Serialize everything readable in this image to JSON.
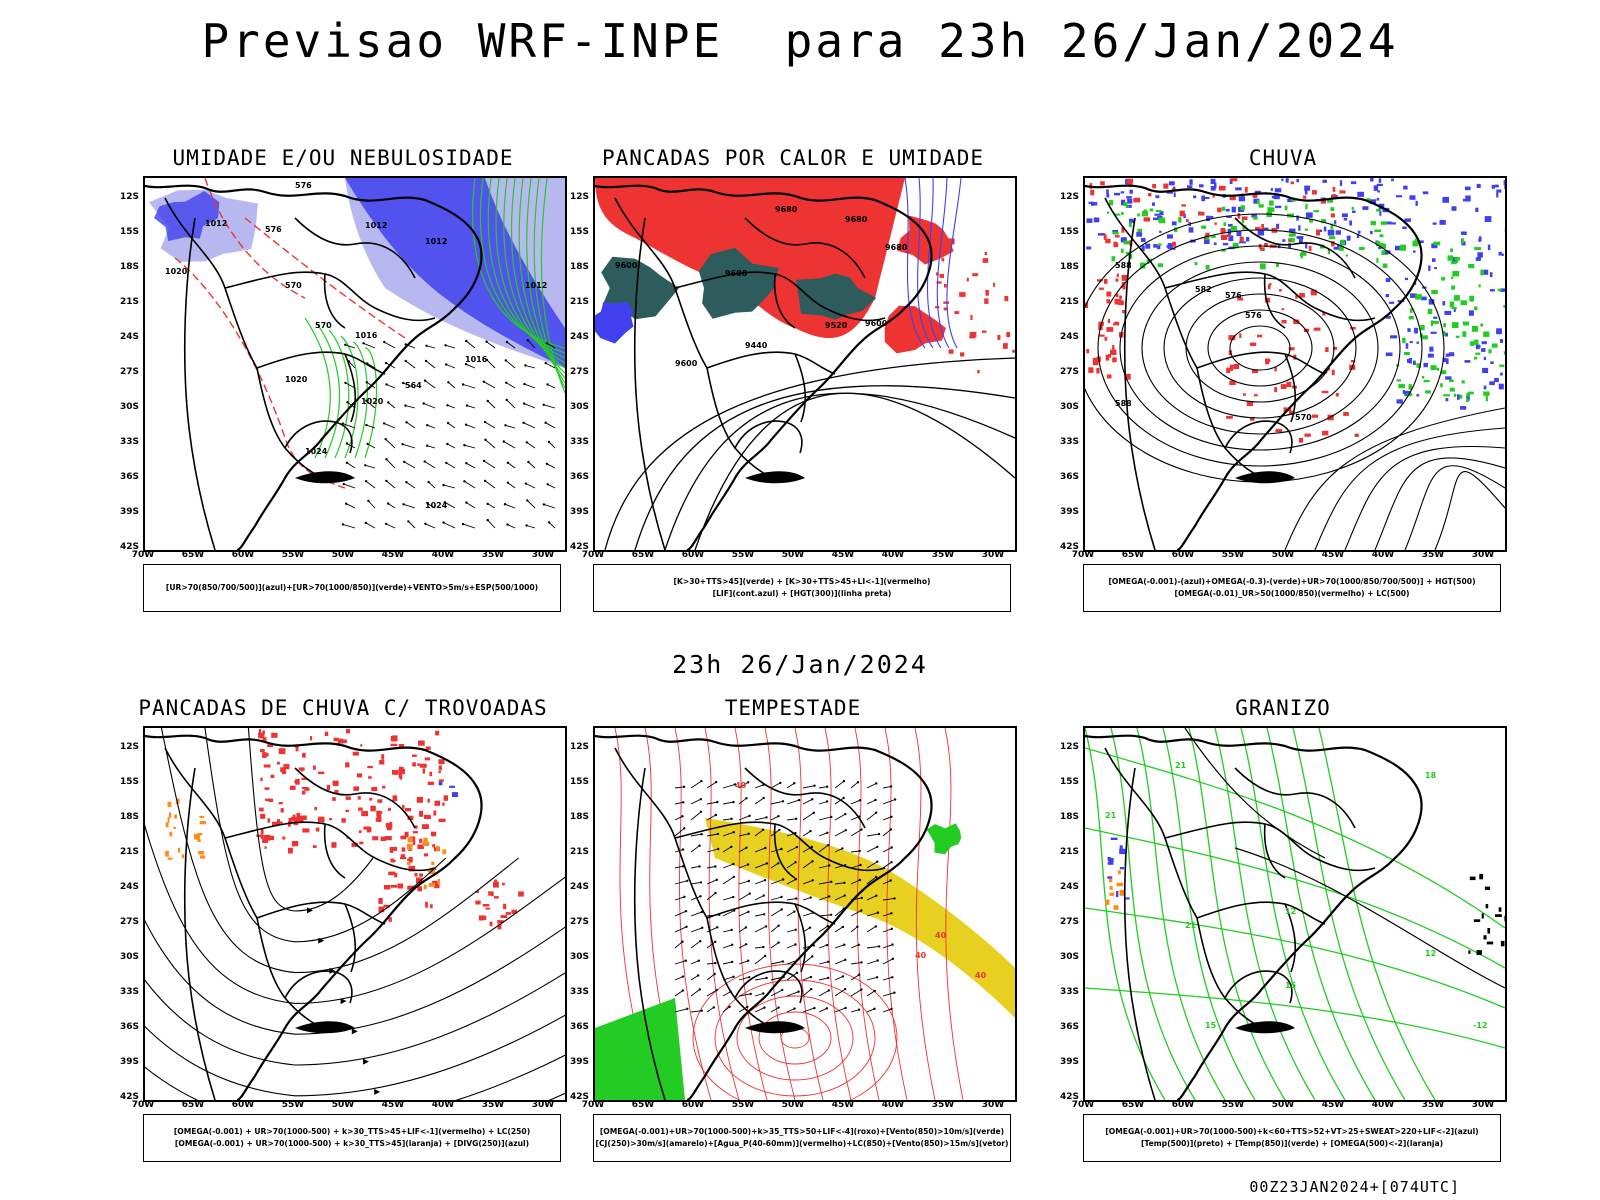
{
  "main_title": "Previsao WRF-INPE  para 23h 26/Jan/2024",
  "mid_title": "23h 26/Jan/2024",
  "footer": "00Z23JAN2024+[074UTC]",
  "lat_labels": [
    "12S",
    "15S",
    "18S",
    "21S",
    "24S",
    "27S",
    "30S",
    "33S",
    "36S",
    "39S",
    "42S"
  ],
  "lon_labels": [
    "70W",
    "65W",
    "60W",
    "55W",
    "50W",
    "45W",
    "40W",
    "35W",
    "30W"
  ],
  "colors": {
    "blue": "#4040ee",
    "light_blue": "#b8b8f0",
    "green": "#22cc22",
    "red": "#ee3333",
    "dark_teal": "#2e5c5c",
    "yellow": "#e8d020",
    "orange": "#ff8c1a",
    "black": "#000000"
  },
  "panels": [
    {
      "title": "UMIDADE E/OU NEBULOSIDADE",
      "legend": [
        "[UR>70(850/700/500)](azul)+[UR>70(1000/850)](verde)+VENTO>5m/s+ESP(500/1000)"
      ],
      "contour_labels": [
        "1012",
        "1012",
        "1012",
        "1012",
        "1016",
        "1016",
        "1020",
        "1020",
        "1020",
        "1024",
        "1024",
        "576",
        "576",
        "570",
        "570",
        "564"
      ]
    },
    {
      "title": "PANCADAS POR CALOR E UMIDADE",
      "legend": [
        "[K>30+TTS>45](verde) + [K>30+TTS>45+LI<-1](vermelho)",
        "[LIF](cont.azul) + [HGT(300)](linha preta)"
      ],
      "contour_labels": [
        "9680",
        "9680",
        "9680",
        "9600",
        "9600",
        "9600",
        "9520",
        "9440",
        "9600"
      ]
    },
    {
      "title": "CHUVA",
      "legend": [
        "[OMEGA(-0.001)-(azul)+OMEGA(-0.3)-(verde)+UR>70(1000/850/700/500)] + HGT(500)",
        "[OMEGA(-0.01)_UR>50(1000/850)(vermelho) + LC(500)"
      ],
      "contour_labels": [
        "588",
        "588",
        "582",
        "576",
        "576",
        "570"
      ]
    },
    {
      "title": "PANCADAS DE CHUVA C/ TROVOADAS",
      "legend": [
        "[OMEGA(-0.001) + UR>70(1000-500) + k>30_TTS>45+LIF<-1](vermelho) + LC(250)",
        "[OMEGA(-0.001) + UR>70(1000-500) + k>30_TTS>45](laranja) + [DIVG(250)](azul)"
      ],
      "contour_labels": []
    },
    {
      "title": "TEMPESTADE",
      "legend": [
        "[OMEGA(-0.001)+UR>70(1000-500)+k>35_TTS>50+LIF<-4](roxo)+[Vento(850)>10m/s](verde)",
        "[CJ(250)>30m/s](amarelo)+[Agua_P(40-60mm)](vermelho)+LC(850)+[Vento(850)>15m/s](vetor)"
      ],
      "contour_labels": [
        "40",
        "40",
        "40",
        "40"
      ]
    },
    {
      "title": "GRANIZO",
      "legend": [
        "[OMEGA(-0.001)+UR>70(1000-500)+k<60+TTS>52+VT>25+SWEAT>220+LIF<-2](azul)",
        "[Temp(500)](preto) + [Temp(850)](verde) + [OMEGA(500)<-2](laranja)"
      ],
      "contour_labels": [
        "21",
        "21",
        "21",
        "18",
        "15",
        "15",
        "12",
        "12",
        "-12"
      ]
    }
  ]
}
